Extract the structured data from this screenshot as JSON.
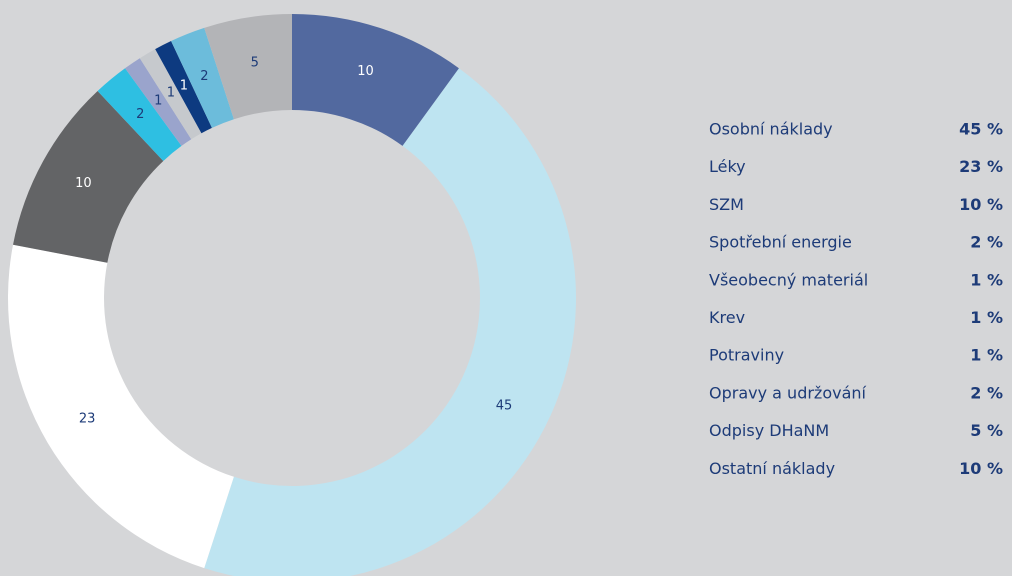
{
  "chart_data": {
    "type": "donut",
    "categories": [
      "Osobní náklady",
      "Léky",
      "SZM",
      "Spotřební energie",
      "Všeobecný materiál",
      "Krev",
      "Potraviny",
      "Opravy a udržování",
      "Odpisy DHaNM",
      "Ostatní náklady"
    ],
    "values": [
      45,
      23,
      10,
      2,
      1,
      1,
      1,
      2,
      5,
      10
    ],
    "value_labels": [
      "45 %",
      "23 %",
      "10 %",
      "2 %",
      "1 %",
      "1 %",
      "1 %",
      "2 %",
      "5 %",
      "10 %"
    ],
    "colors": [
      "#bee4f1",
      "#ffffff",
      "#636466",
      "#2ebfe2",
      "#9aa4cc",
      "#c6c9cd",
      "#0d3a80",
      "#6cbcdb",
      "#b3b4b7",
      "#52699f"
    ]
  }
}
